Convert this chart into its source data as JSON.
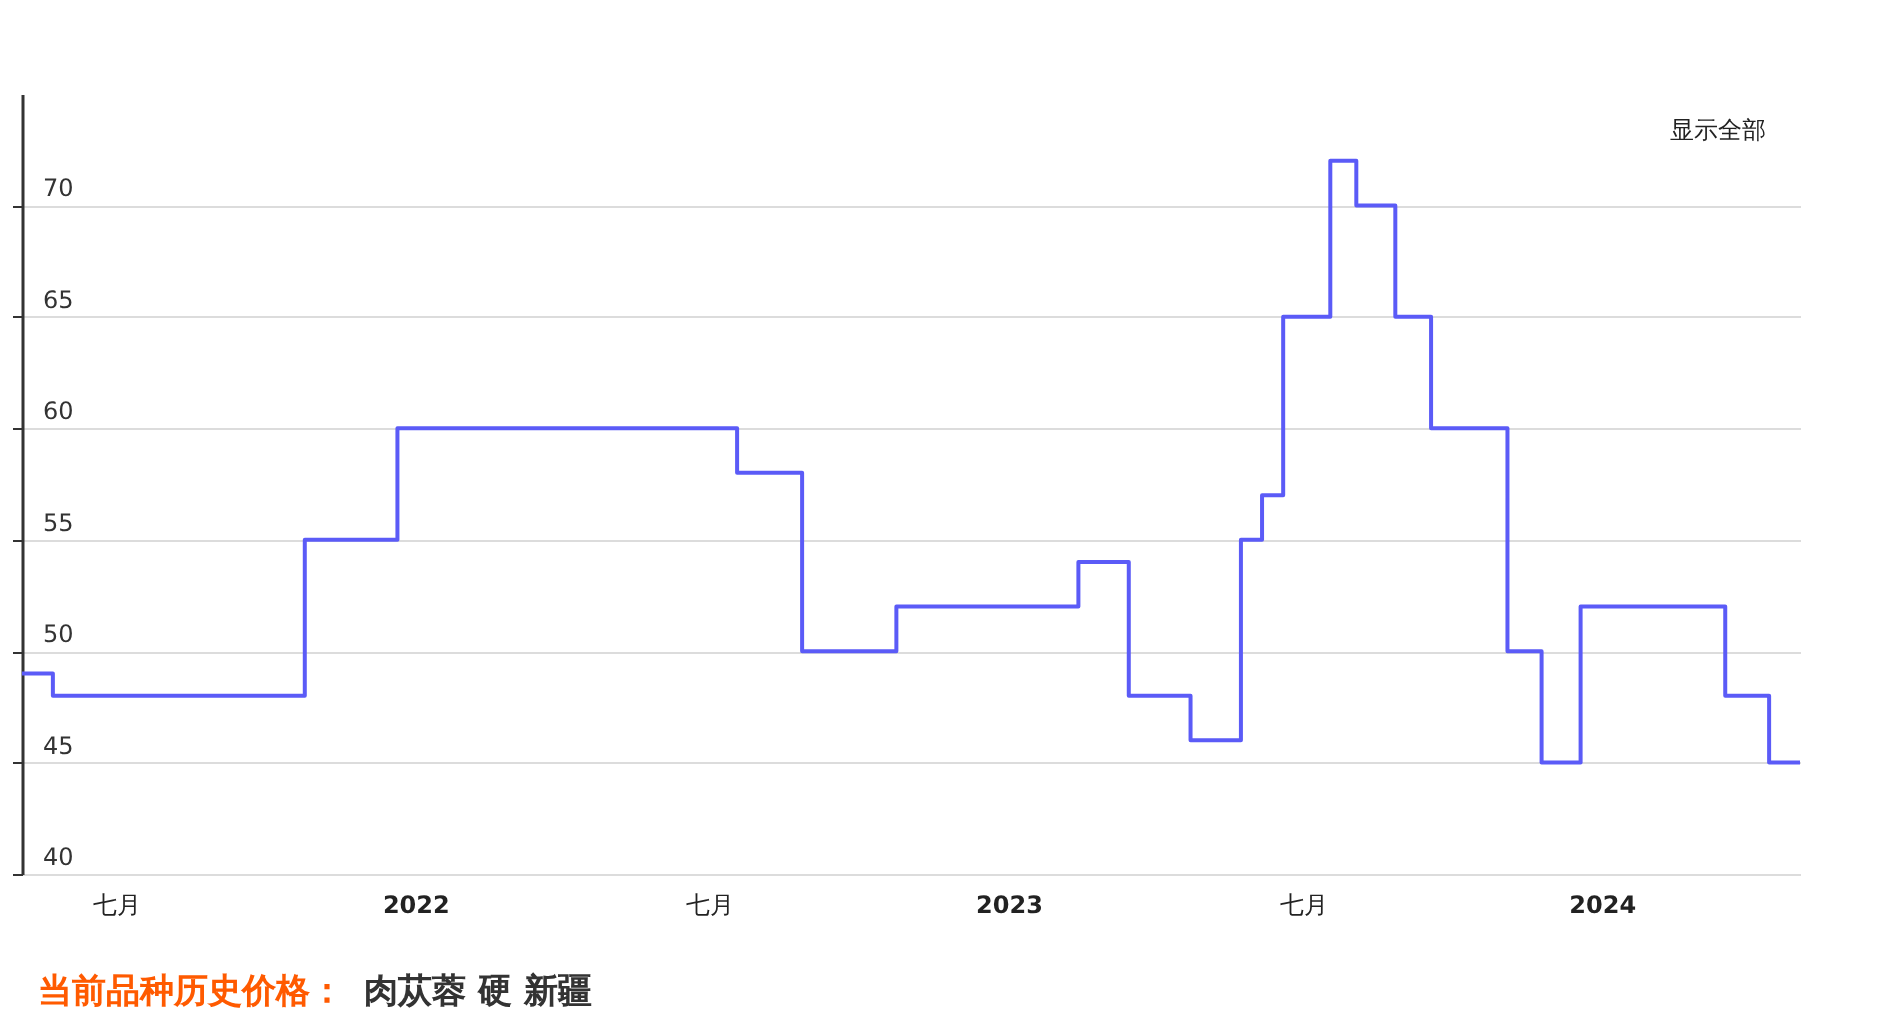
{
  "chart_data": {
    "type": "step",
    "title": "当前品种历史价格：",
    "subtitle": "肉苁蓉 硬 新疆",
    "annotations": [
      "显示全部"
    ],
    "x": [
      "2021-05-04",
      "2021-05-23",
      "2021-10-25",
      "2021-12-21",
      "2022-07-18",
      "2022-08-27",
      "2022-10-24",
      "2023-02-13",
      "2023-03-16",
      "2023-04-23",
      "2023-05-24",
      "2023-06-06",
      "2023-06-19",
      "2023-07-18",
      "2023-08-03",
      "2023-08-27",
      "2023-09-18",
      "2023-11-04",
      "2023-11-25",
      "2023-12-19",
      "2024-03-17",
      "2024-04-13",
      "2024-05-02"
    ],
    "series": [
      {
        "color": "#5b5bf7",
        "values": [
          49,
          48,
          55,
          60,
          58,
          50,
          52,
          54,
          48,
          46,
          55,
          57,
          65,
          72,
          70,
          65,
          60,
          50,
          45,
          52,
          48,
          45,
          45
        ]
      }
    ],
    "xlim": [
      "2021-05-04",
      "2024-05-02"
    ],
    "xticks": [
      {
        "value": "2021-07",
        "label": "七月"
      },
      {
        "value": "2022",
        "label": "2022"
      },
      {
        "value": "2022-07",
        "label": "七月"
      },
      {
        "value": "2023",
        "label": "2023"
      },
      {
        "value": "2023-07",
        "label": "七月"
      },
      {
        "value": "2024",
        "label": "2024"
      }
    ],
    "ylim": [
      40,
      75
    ],
    "yticks": [
      40,
      45,
      50,
      55,
      60,
      65,
      70
    ],
    "grid": "y",
    "line_style": "solid"
  }
}
